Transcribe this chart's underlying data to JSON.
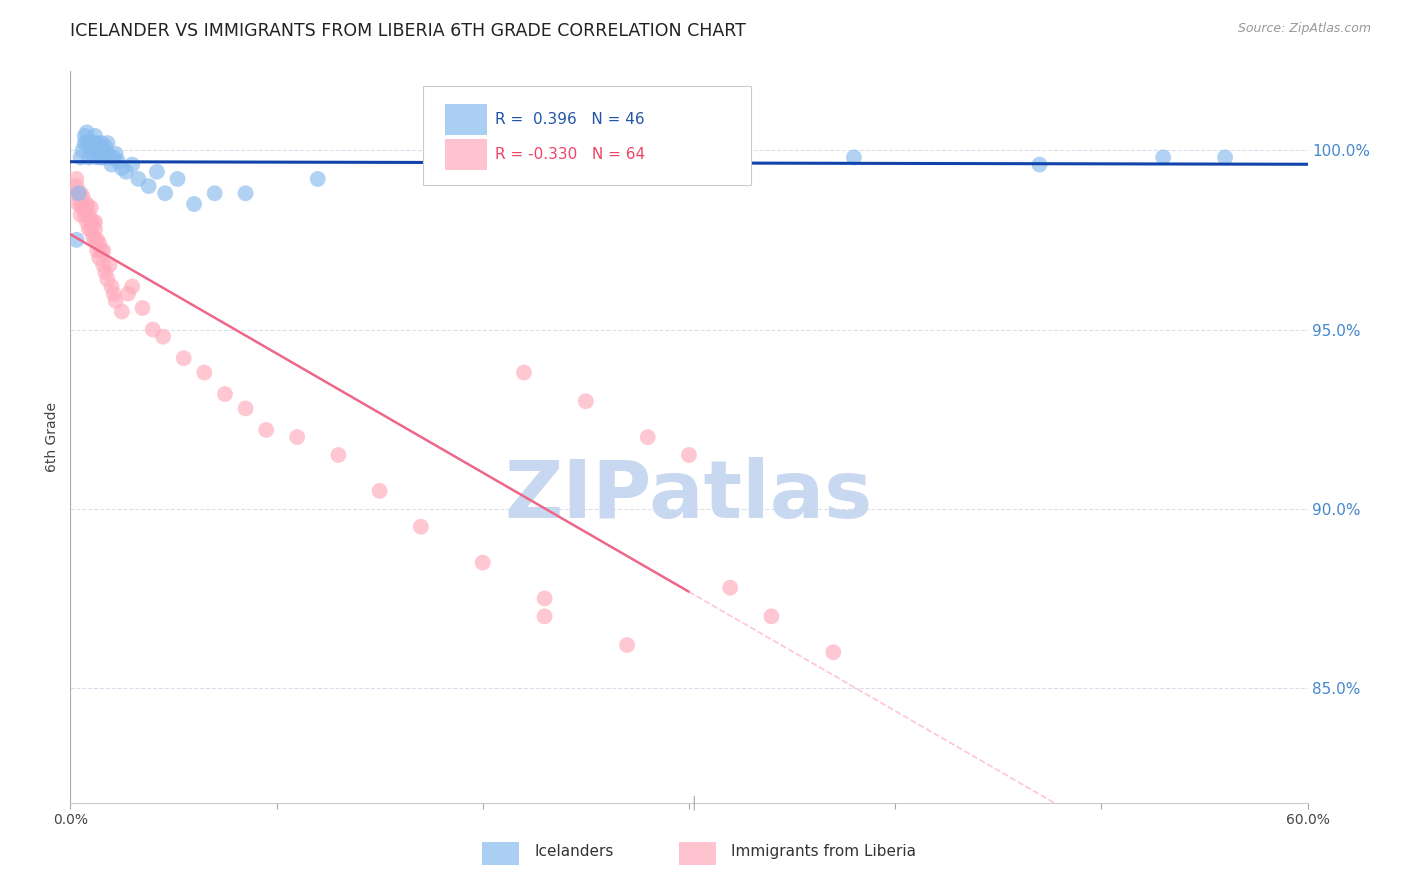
{
  "title": "ICELANDER VS IMMIGRANTS FROM LIBERIA 6TH GRADE CORRELATION CHART",
  "source": "Source: ZipAtlas.com",
  "ylabel": "6th Grade",
  "ytick_labels": [
    "100.0%",
    "95.0%",
    "90.0%",
    "85.0%"
  ],
  "ytick_values": [
    1.0,
    0.95,
    0.9,
    0.85
  ],
  "xlim": [
    0.0,
    0.6
  ],
  "ylim": [
    0.818,
    1.022
  ],
  "legend_blue_label": "Icelanders",
  "legend_pink_label": "Immigrants from Liberia",
  "R_blue": 0.396,
  "N_blue": 46,
  "R_pink": -0.33,
  "N_pink": 64,
  "blue_color": "#88BBEE",
  "pink_color": "#FFAABB",
  "blue_line_color": "#1144AA",
  "pink_line_color": "#EE6688",
  "pink_dash_color": "#FFBBCC",
  "watermark_color": "#C8D8F0",
  "background_color": "#FFFFFF",
  "grid_color": "#DDDDEE",
  "blue_x": [
    0.003,
    0.004,
    0.005,
    0.006,
    0.007,
    0.007,
    0.008,
    0.008,
    0.009,
    0.01,
    0.01,
    0.011,
    0.012,
    0.012,
    0.013,
    0.013,
    0.014,
    0.015,
    0.015,
    0.016,
    0.016,
    0.017,
    0.018,
    0.018,
    0.019,
    0.02,
    0.021,
    0.022,
    0.023,
    0.025,
    0.027,
    0.03,
    0.033,
    0.038,
    0.042,
    0.046,
    0.052,
    0.06,
    0.07,
    0.085,
    0.12,
    0.28,
    0.38,
    0.47,
    0.53,
    0.56
  ],
  "blue_y": [
    0.975,
    0.988,
    0.998,
    1.0,
    1.002,
    1.004,
    1.002,
    1.005,
    0.998,
    1.0,
    1.002,
    0.999,
    1.002,
    1.004,
    1.002,
    0.998,
    1.0,
    0.998,
    1.002,
    1.0,
    0.998,
    1.001,
    0.999,
    1.002,
    0.998,
    0.996,
    0.998,
    0.999,
    0.997,
    0.995,
    0.994,
    0.996,
    0.992,
    0.99,
    0.994,
    0.988,
    0.992,
    0.985,
    0.988,
    0.988,
    0.992,
    0.998,
    0.998,
    0.996,
    0.998,
    0.998
  ],
  "pink_x": [
    0.002,
    0.003,
    0.003,
    0.004,
    0.004,
    0.005,
    0.005,
    0.005,
    0.006,
    0.006,
    0.007,
    0.007,
    0.008,
    0.008,
    0.008,
    0.009,
    0.009,
    0.01,
    0.01,
    0.01,
    0.011,
    0.011,
    0.012,
    0.012,
    0.012,
    0.013,
    0.013,
    0.014,
    0.014,
    0.015,
    0.016,
    0.016,
    0.017,
    0.018,
    0.019,
    0.02,
    0.021,
    0.022,
    0.025,
    0.028,
    0.03,
    0.035,
    0.04,
    0.045,
    0.055,
    0.065,
    0.075,
    0.085,
    0.095,
    0.11,
    0.13,
    0.15,
    0.17,
    0.2,
    0.23,
    0.27,
    0.22,
    0.25,
    0.28,
    0.3,
    0.32,
    0.34,
    0.37,
    0.23
  ],
  "pink_y": [
    0.988,
    0.99,
    0.992,
    0.985,
    0.988,
    0.988,
    0.985,
    0.982,
    0.984,
    0.987,
    0.984,
    0.982,
    0.984,
    0.98,
    0.985,
    0.982,
    0.978,
    0.98,
    0.984,
    0.978,
    0.98,
    0.976,
    0.978,
    0.98,
    0.975,
    0.975,
    0.972,
    0.974,
    0.97,
    0.972,
    0.972,
    0.968,
    0.966,
    0.964,
    0.968,
    0.962,
    0.96,
    0.958,
    0.955,
    0.96,
    0.962,
    0.956,
    0.95,
    0.948,
    0.942,
    0.938,
    0.932,
    0.928,
    0.922,
    0.92,
    0.915,
    0.905,
    0.895,
    0.885,
    0.875,
    0.862,
    0.938,
    0.93,
    0.92,
    0.915,
    0.878,
    0.87,
    0.86,
    0.87
  ]
}
